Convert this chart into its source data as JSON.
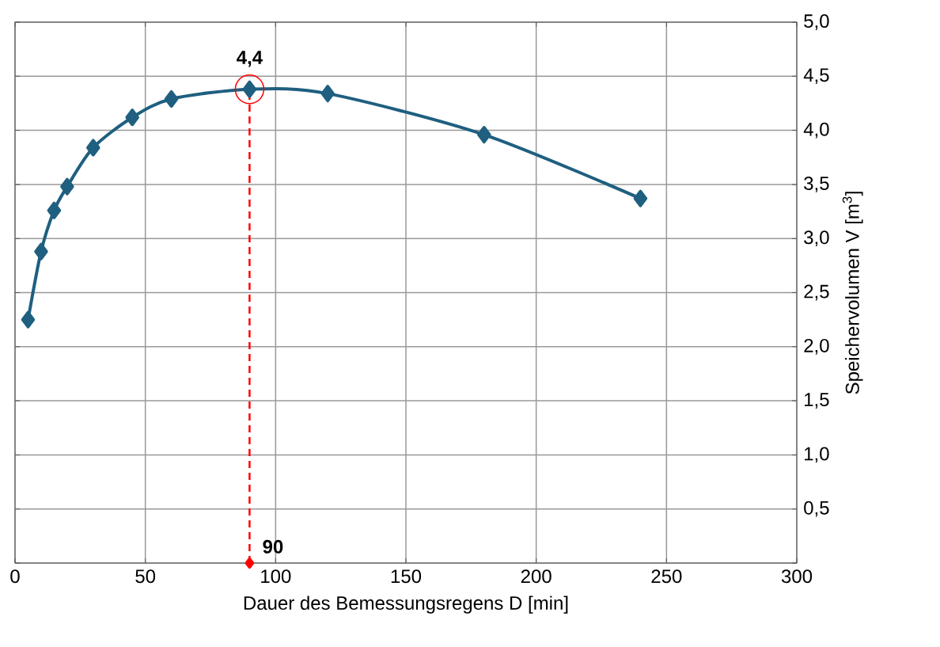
{
  "chart_data": {
    "type": "line",
    "xlabel": "Dauer des Bemessungsregens  D [min]",
    "ylabel": "Speichervolumen V [m$^{3}$]",
    "x": [
      5,
      10,
      15,
      20,
      30,
      45,
      60,
      90,
      120,
      180,
      240
    ],
    "series": [
      {
        "color": "#1f5f80",
        "values": [
          2.25,
          2.88,
          3.26,
          3.48,
          3.84,
          4.12,
          4.29,
          4.38,
          4.34,
          3.96,
          3.37
        ]
      },
      {
        "type": "scatter",
        "color": "#ff0000",
        "x": [
          90
        ],
        "values": [
          0
        ]
      }
    ],
    "xlim": [
      0,
      300
    ],
    "xticks": [
      0,
      50,
      100,
      150,
      200,
      250,
      300
    ],
    "ylim": [
      0,
      5
    ],
    "yticks": [
      {
        "value": 0,
        "label": null
      },
      {
        "value": 0.5,
        "label": "0,5"
      },
      {
        "value": 1,
        "label": "1,0"
      },
      {
        "value": 1.5,
        "label": "1,5"
      },
      {
        "value": 2,
        "label": "2,0"
      },
      {
        "value": 2.5,
        "label": "2,5"
      },
      {
        "value": 3,
        "label": "3,0"
      },
      {
        "value": 3.5,
        "label": "3,5"
      },
      {
        "value": 4,
        "label": "4,0"
      },
      {
        "value": 4.5,
        "label": "4,5"
      },
      {
        "value": 5,
        "label": "5,0"
      }
    ],
    "annotations": [
      {
        "text": "4,4",
        "x": 90,
        "y": 4.38
      }
    ],
    "ref_lines": [
      {
        "axis": "x",
        "value": 90,
        "label": "90",
        "color": "#ff0000",
        "line_style": "dashed"
      }
    ],
    "grid": true,
    "marker": "diamond",
    "line_style": "solid"
  }
}
